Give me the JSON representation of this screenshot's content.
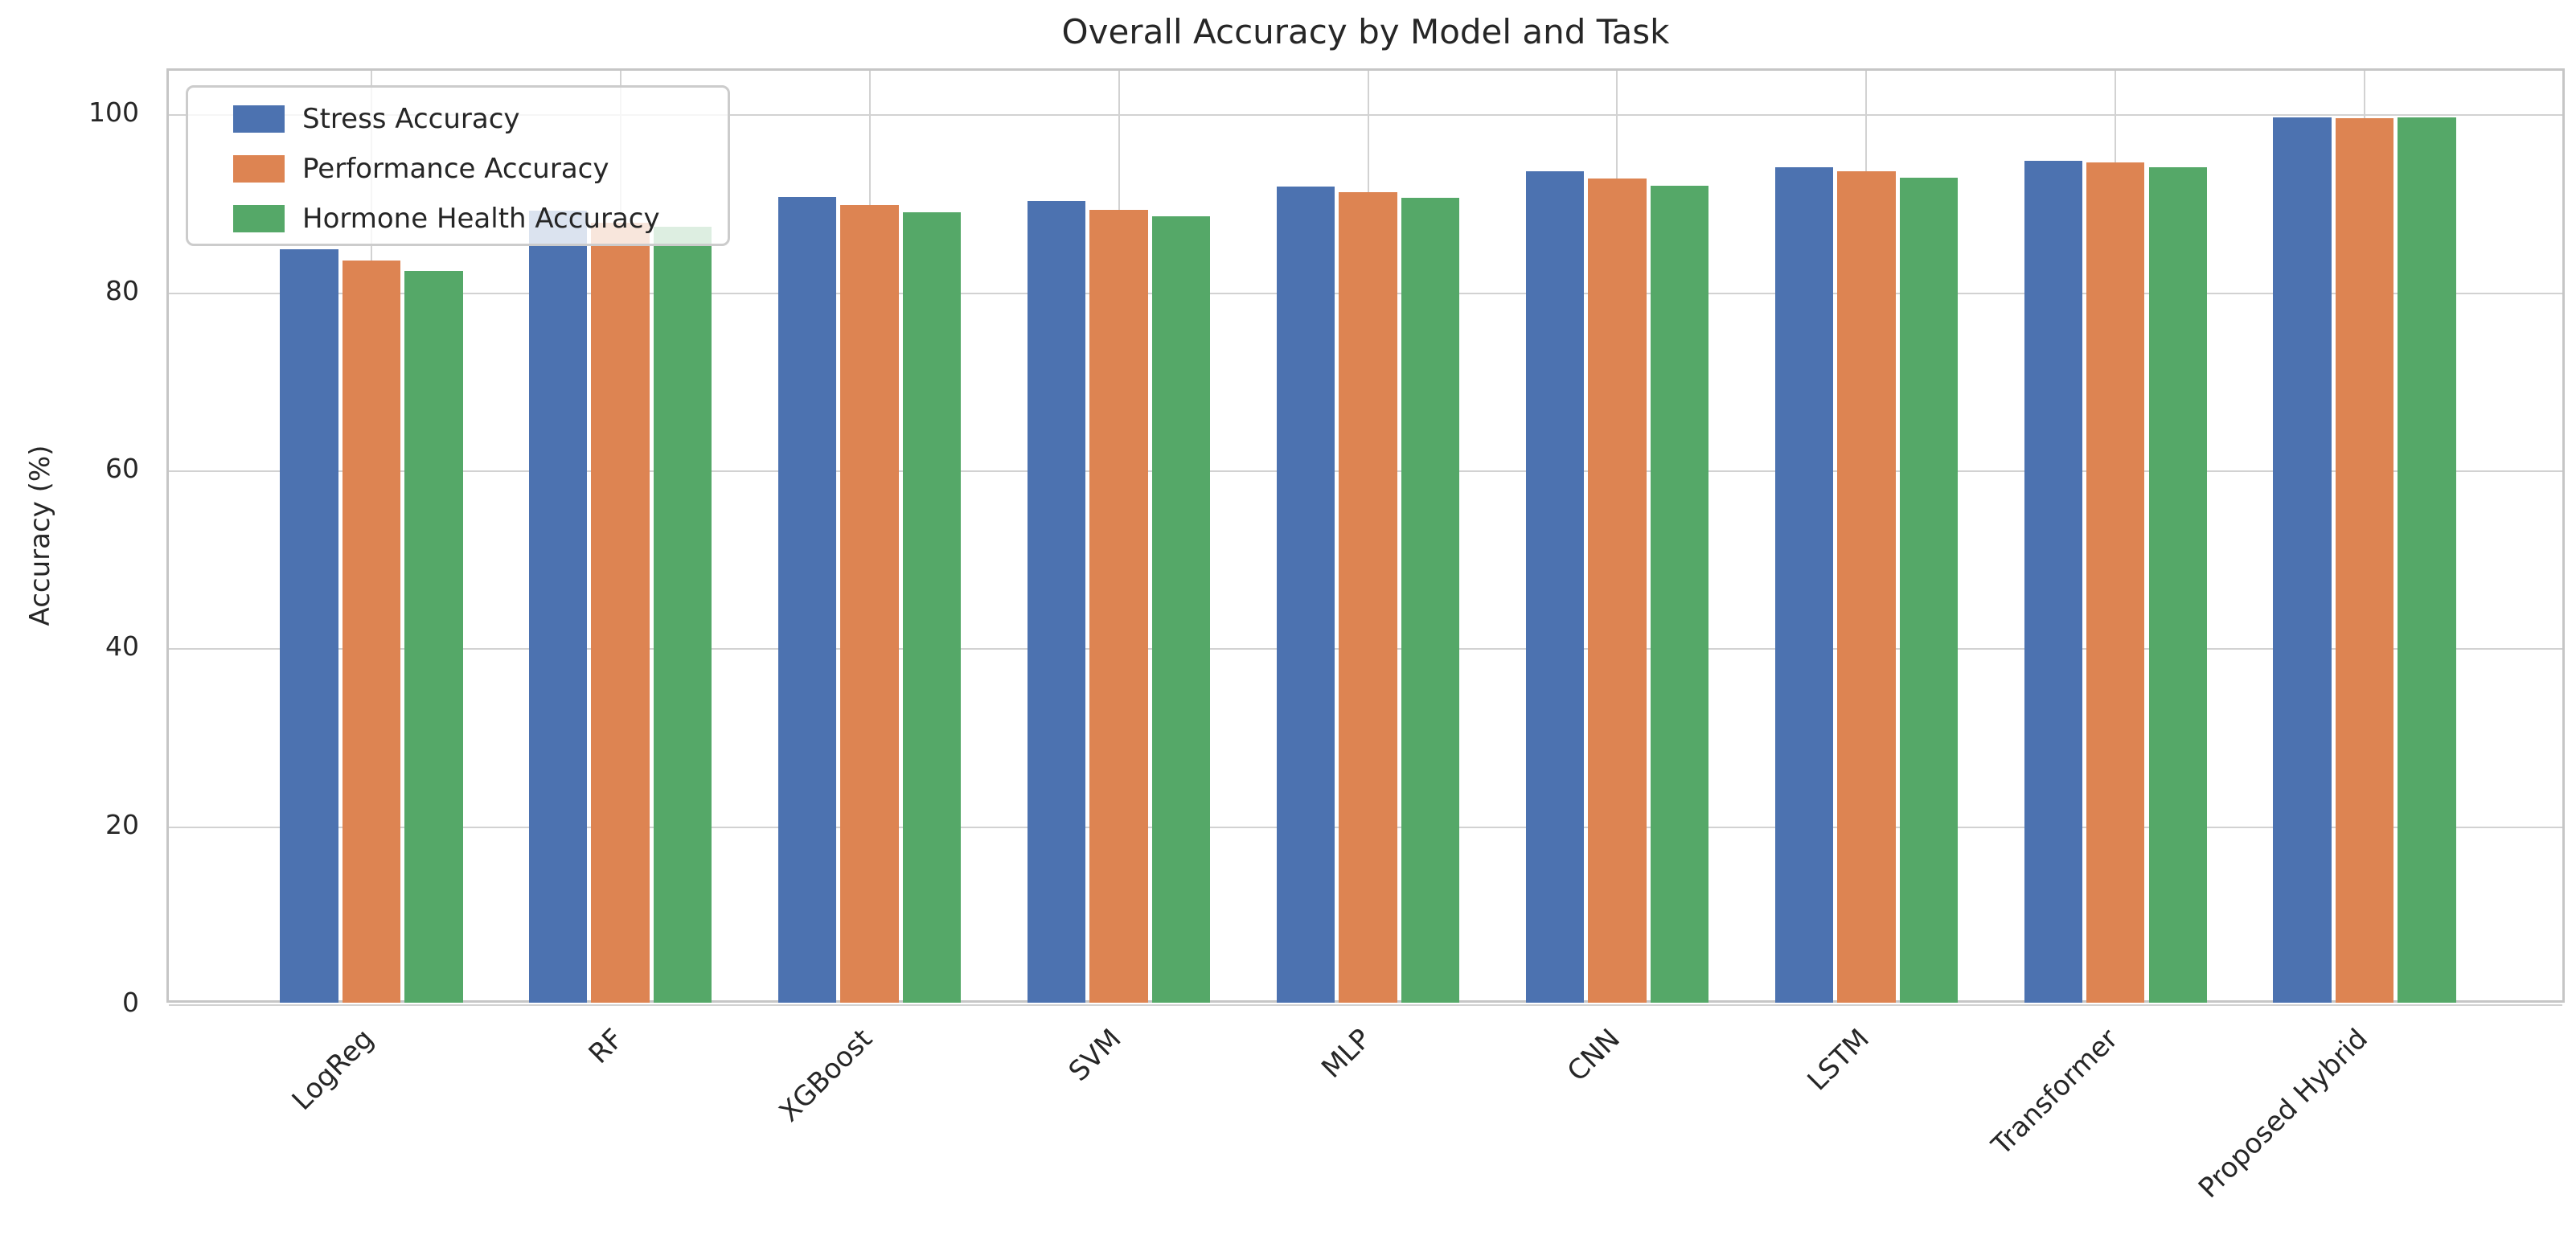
{
  "chart_data": {
    "type": "bar",
    "title": "Overall Accuracy by Model and Task",
    "xlabel": "",
    "ylabel": "Accuracy (%)",
    "categories": [
      "LogReg",
      "RF",
      "XGBoost",
      "SVM",
      "MLP",
      "CNN",
      "LSTM",
      "Transformer",
      "Proposed Hybrid"
    ],
    "series": [
      {
        "name": "Stress Accuracy",
        "color": "#4C72B0",
        "values": [
          84.9,
          89.3,
          90.8,
          90.4,
          92.0,
          93.7,
          94.2,
          94.9,
          99.8
        ]
      },
      {
        "name": "Performance Accuracy",
        "color": "#DD8452",
        "values": [
          83.7,
          87.9,
          89.9,
          89.4,
          91.4,
          92.9,
          93.7,
          94.7,
          99.7
        ]
      },
      {
        "name": "Hormone Health Accuracy",
        "color": "#55A868",
        "values": [
          82.5,
          87.5,
          89.1,
          88.6,
          90.7,
          92.1,
          93.0,
          94.2,
          99.8
        ]
      }
    ],
    "yticks": [
      0,
      20,
      40,
      60,
      80,
      100
    ],
    "ylim": [
      0,
      105
    ],
    "grid": "both",
    "legend_position": "upper left",
    "legend_frame_alpha": 0.8
  },
  "colors": {
    "background": "#ffffff",
    "grid": "#d2d2d2",
    "spine": "#c6c6c6",
    "text": "#262626"
  }
}
